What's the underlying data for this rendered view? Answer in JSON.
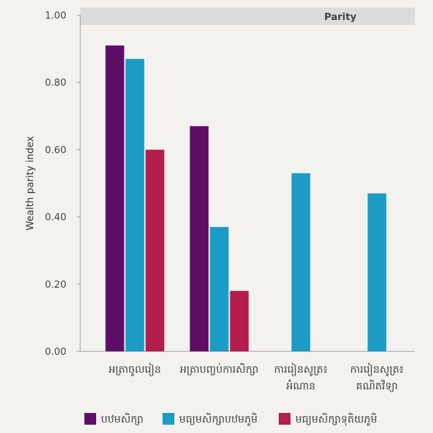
{
  "chart_data": {
    "type": "bar",
    "ylabel": "Wealth parity index",
    "band_label": "Parity",
    "ylim": [
      0,
      1
    ],
    "yticks": [
      "0.00",
      "0.20",
      "0.40",
      "0.60",
      "0.80",
      "1.00"
    ],
    "grid": false,
    "legend_position": "bottom",
    "categories": [
      [
        "អត្រាចូលរៀន"
      ],
      [
        "អត្រាបញ្ចប់ការសិក្សា"
      ],
      [
        "ការរៀនសូត្រ៖",
        "អំណាន"
      ],
      [
        "ការរៀនសូត្រ៖",
        "គណិតវិទ្យា"
      ]
    ],
    "series": [
      {
        "name": "បឋមសិក្សា",
        "color": "#5f0e66",
        "values": [
          0.91,
          0.67,
          null,
          null
        ]
      },
      {
        "name": "មធ្យមសិក្សាបឋមភូមិ",
        "color": "#1a9cc4",
        "values": [
          0.87,
          0.37,
          0.53,
          0.47
        ]
      },
      {
        "name": "មធ្យមសិក្សាទុតិយភូមិ",
        "color": "#b31c4d",
        "values": [
          0.6,
          0.18,
          null,
          null
        ]
      }
    ]
  },
  "colors": {
    "background": "#f3f2ee",
    "band": "#dcdcdc",
    "axis": "#999999"
  }
}
